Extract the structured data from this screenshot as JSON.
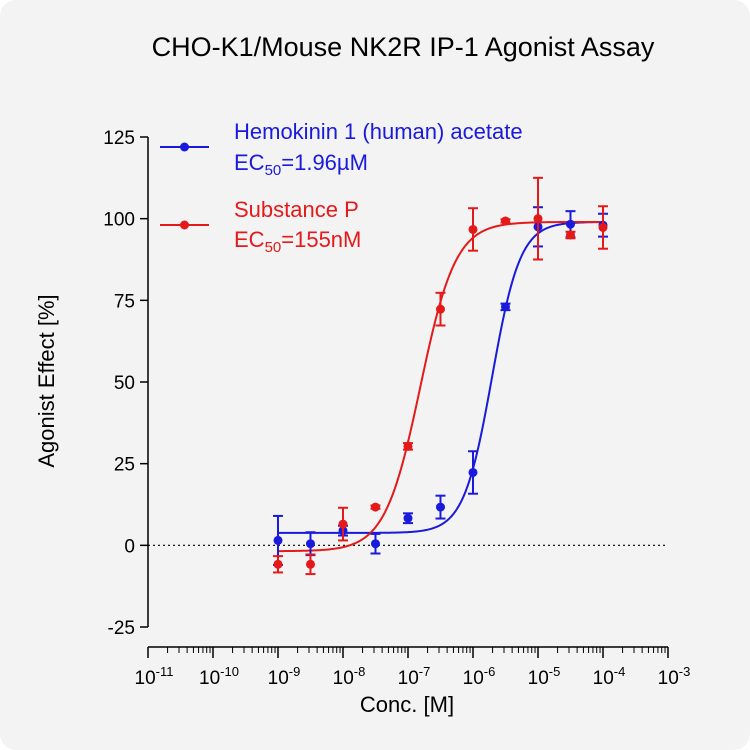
{
  "chart_data": {
    "type": "scatter",
    "title": "CHO-K1/Mouse NK2R IP-1 Agonist Assay",
    "xlabel": "Conc. [M]",
    "ylabel": "Agonist Effect [%]",
    "x_scale": "log",
    "xlim": [
      1e-11,
      0.001
    ],
    "ylim": [
      -25,
      125
    ],
    "x_ticks": [
      {
        "value": 1e-11,
        "base": "10",
        "exp": "-11"
      },
      {
        "value": 1e-10,
        "base": "10",
        "exp": "-10"
      },
      {
        "value": 1e-09,
        "base": "10",
        "exp": "-9"
      },
      {
        "value": 1e-08,
        "base": "10",
        "exp": "-8"
      },
      {
        "value": 1e-07,
        "base": "10",
        "exp": "-7"
      },
      {
        "value": 1e-06,
        "base": "10",
        "exp": "-6"
      },
      {
        "value": 1e-05,
        "base": "10",
        "exp": "-5"
      },
      {
        "value": 0.0001,
        "base": "10",
        "exp": "-4"
      },
      {
        "value": 0.001,
        "base": "10",
        "exp": "-3"
      }
    ],
    "y_ticks": [
      {
        "value": 125,
        "label": "125"
      },
      {
        "value": 100,
        "label": "100"
      },
      {
        "value": 75,
        "label": "75"
      },
      {
        "value": 50,
        "label": "50"
      },
      {
        "value": 25,
        "label": "25"
      },
      {
        "value": 0,
        "label": "0"
      },
      {
        "value": -25,
        "label": "-25"
      }
    ],
    "reference_line_y": 0,
    "grid": false,
    "legend_position": "top-left",
    "series": [
      {
        "name": "Hemokinin 1 (human) acetate",
        "ec50_prefix": "EC",
        "ec50_sub": "50",
        "ec50_value": "=1.96µM",
        "ec50_molar": 1.96e-06,
        "color": "#1a1adc",
        "fit": {
          "bottom": 3.8,
          "top": 99.0,
          "hill": 2.0
        },
        "points": [
          {
            "x": 1e-09,
            "y": 1.5,
            "err": 7.5
          },
          {
            "x": 3.16e-09,
            "y": 0.5,
            "err": 3.5
          },
          {
            "x": 1e-08,
            "y": 4.5,
            "err": 1.5
          },
          {
            "x": 3.16e-08,
            "y": 0.5,
            "err": 3.0
          },
          {
            "x": 1e-07,
            "y": 8.3,
            "err": 1.5
          },
          {
            "x": 3.16e-07,
            "y": 11.7,
            "err": 3.5
          },
          {
            "x": 1e-06,
            "y": 22.3,
            "err": 6.5
          },
          {
            "x": 3.16e-06,
            "y": 73.0,
            "err": 1.0
          },
          {
            "x": 1e-05,
            "y": 97.5,
            "err": 6.0
          },
          {
            "x": 3.16e-05,
            "y": 98.3,
            "err": 4.0
          },
          {
            "x": 0.0001,
            "y": 98.0,
            "err": 3.5
          }
        ]
      },
      {
        "name": "Substance P",
        "ec50_prefix": "EC",
        "ec50_sub": "50",
        "ec50_value": "=155nM",
        "ec50_molar": 1.55e-07,
        "color": "#e41a1a",
        "fit": {
          "bottom": -1.8,
          "top": 99.0,
          "hill": 1.6
        },
        "points": [
          {
            "x": 1e-09,
            "y": -5.8,
            "err": 2.5
          },
          {
            "x": 3.16e-09,
            "y": -5.8,
            "err": 3.0
          },
          {
            "x": 1e-08,
            "y": 6.5,
            "err": 5.0
          },
          {
            "x": 3.16e-08,
            "y": 11.7,
            "err": 0.5
          },
          {
            "x": 1e-07,
            "y": 30.3,
            "err": 1.0
          },
          {
            "x": 3.16e-07,
            "y": 72.3,
            "err": 5.0
          },
          {
            "x": 1e-06,
            "y": 96.7,
            "err": 6.5
          },
          {
            "x": 3.16e-06,
            "y": 99.3,
            "err": 0.5
          },
          {
            "x": 1e-05,
            "y": 100.0,
            "err": 12.5
          },
          {
            "x": 3.16e-05,
            "y": 95.0,
            "err": 1.0
          },
          {
            "x": 0.0001,
            "y": 97.3,
            "err": 6.5
          }
        ]
      }
    ]
  }
}
